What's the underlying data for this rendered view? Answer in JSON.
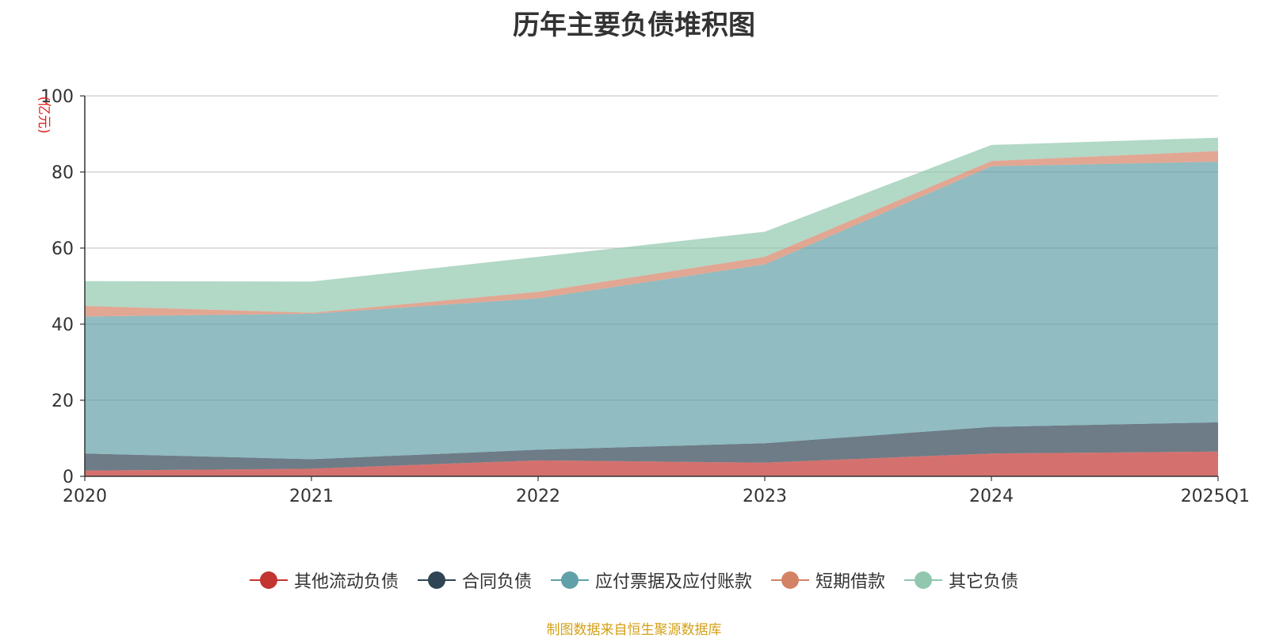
{
  "chart_data": {
    "type": "area",
    "stacked": true,
    "title": "历年主要负债堆积图",
    "ylabel": "(亿元)",
    "xlabel": "",
    "categories": [
      "2020",
      "2021",
      "2022",
      "2023",
      "2024",
      "2025Q1"
    ],
    "ylim": [
      0,
      100
    ],
    "yticks": [
      0,
      20,
      40,
      60,
      80,
      100
    ],
    "grid": true,
    "legend_position": "bottom",
    "series": [
      {
        "name": "其他流动负债",
        "color": "#c23531",
        "values": [
          1.5,
          2.0,
          4.2,
          3.6,
          6.0,
          6.5
        ]
      },
      {
        "name": "合同负债",
        "color": "#2f4554",
        "values": [
          4.5,
          2.5,
          2.8,
          5.1,
          7.0,
          7.7
        ]
      },
      {
        "name": "应付票据及应付账款",
        "color": "#61a0a8",
        "values": [
          36.0,
          38.2,
          39.8,
          47.0,
          68.5,
          68.5
        ]
      },
      {
        "name": "短期借款",
        "color": "#d48265",
        "values": [
          2.8,
          0.3,
          1.7,
          2.0,
          1.4,
          2.8
        ]
      },
      {
        "name": "其它负债",
        "color": "#91c7ae",
        "values": [
          6.5,
          8.2,
          9.2,
          6.6,
          4.2,
          3.5
        ]
      }
    ]
  },
  "source_note": "制图数据来自恒生聚源数据库"
}
